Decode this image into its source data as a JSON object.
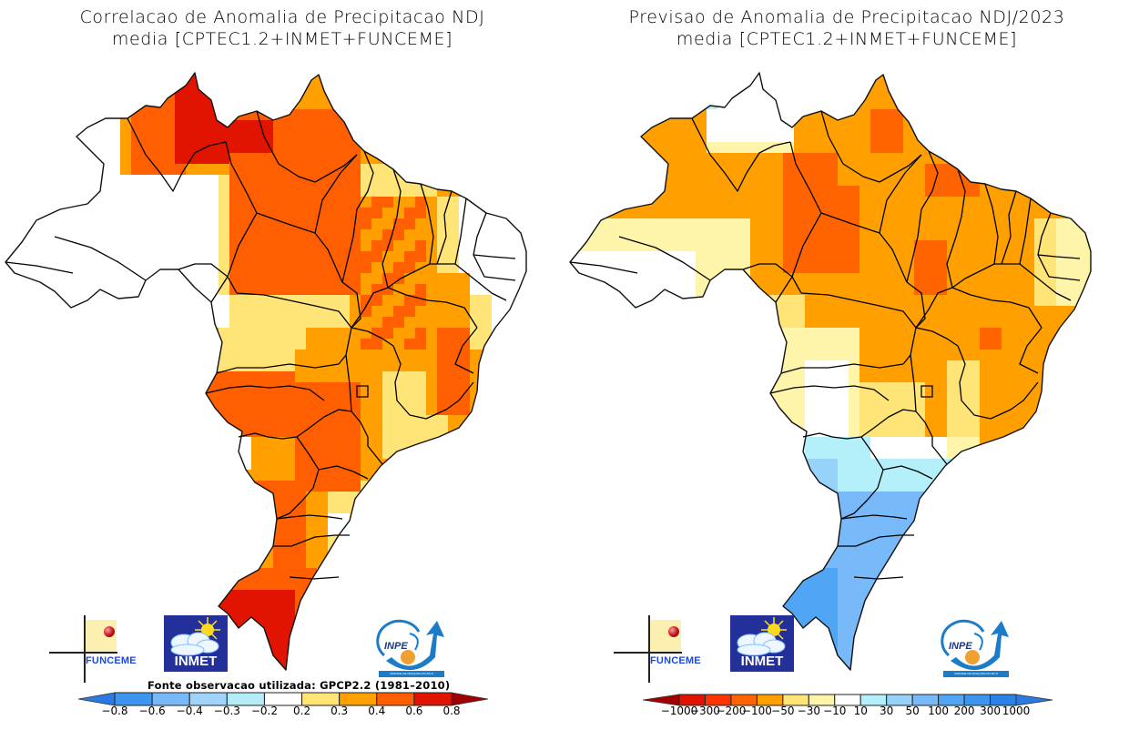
{
  "left_panel": {
    "title_line1": "Correlacao de Anomalia de Precipitacao NDJ",
    "title_line2": "media [CPTEC1.2+INMET+FUNCEME]",
    "source_note": "Fonte observacao utilizada: GPCP2.2 (1981-2010)",
    "colorbar": {
      "labels": [
        "-0.8",
        "-0.6",
        "-0.4",
        "-0.3",
        "-0.2",
        "0.2",
        "0.3",
        "0.4",
        "0.6",
        "0.8"
      ],
      "low_arrow_color": "#2a7ae2",
      "high_arrow_color": "#a00000",
      "bin_colors": [
        "#3c96f0",
        "#78b9f8",
        "#9fd3fb",
        "#b4ecf7",
        "#ffffff",
        "#ffe478",
        "#ff9f00",
        "#ff5f00",
        "#e01400"
      ]
    }
  },
  "right_panel": {
    "title_line1": "Previsao de Anomalia de Precipitacao NDJ/2023",
    "title_line2": "media [CPTEC1.2+INMET+FUNCEME]",
    "colorbar": {
      "labels": [
        "-1000",
        "-300",
        "-200",
        "-100",
        "-50",
        "-30",
        "-10",
        "10",
        "30",
        "50",
        "100",
        "200",
        "300",
        "1000"
      ],
      "low_arrow_color": "#a00000",
      "high_arrow_color": "#2a7ae2",
      "bin_colors": [
        "#e01400",
        "#ff3200",
        "#ff6400",
        "#ffa000",
        "#ffe478",
        "#fff5aa",
        "#ffffff",
        "#b4f0fa",
        "#96d2fa",
        "#78b9fa",
        "#50a5f5",
        "#3c96f0",
        "#2a82e6"
      ]
    }
  },
  "logos": {
    "funceme": "FUNCEME",
    "inmet": "INMET",
    "inpe": "INPE",
    "inpe_band": "UNIDADE DE PESQUISA DO MCTI"
  },
  "chart_data": [
    {
      "type": "heatmap",
      "title": "Correlacao de Anomalia de Precipitacao NDJ media [CPTEC1.2+INMET+FUNCEME]",
      "region": "Brasil",
      "variable": "correlation",
      "legend_bins": [
        -0.8,
        -0.6,
        -0.4,
        -0.3,
        -0.2,
        0.2,
        0.3,
        0.4,
        0.6,
        0.8
      ],
      "note": "Fonte observacao utilizada: GPCP2.2 (1981-2010)",
      "regional_summary": {
        "Roraima/Amapa north": "0.6-0.8",
        "Para/Amazonas east": "0.4-0.6",
        "Amazonas west": "-0.2-0.2",
        "Maranhao/Piaui": "0.4-0.6",
        "Nordeste east coast": "-0.2-0.3",
        "Mato Grosso": "0.3-0.6",
        "Goias/Minas": "0.2-0.4",
        "Sao Paulo/Parana": "0.2-0.4",
        "Rio Grande do Sul": "0.6-0.8"
      }
    },
    {
      "type": "heatmap",
      "title": "Previsao de Anomalia de Precipitacao NDJ/2023 media [CPTEC1.2+INMET+FUNCEME]",
      "region": "Brasil",
      "variable": "precipitation anomaly (mm)",
      "legend_bins": [
        -1000,
        -300,
        -200,
        -100,
        -50,
        -30,
        -10,
        10,
        30,
        50,
        100,
        200,
        300,
        1000
      ],
      "regional_summary": {
        "Norte (Amazonas/Para)": "-100 to -50",
        "Para east/Maranhao": "-200 to -100",
        "Acre/Rondonia": "-30 to 10",
        "Nordeste interior": "-100 to -50",
        "Nordeste east coast": "-50 to -10",
        "Centro-Oeste": "-30 to 10",
        "Mato Grosso do Sul/Sao Paulo": "10 to 50",
        "Parana/Santa Catarina": "50 to 100",
        "Rio Grande do Sul": "50 to 200"
      }
    }
  ]
}
